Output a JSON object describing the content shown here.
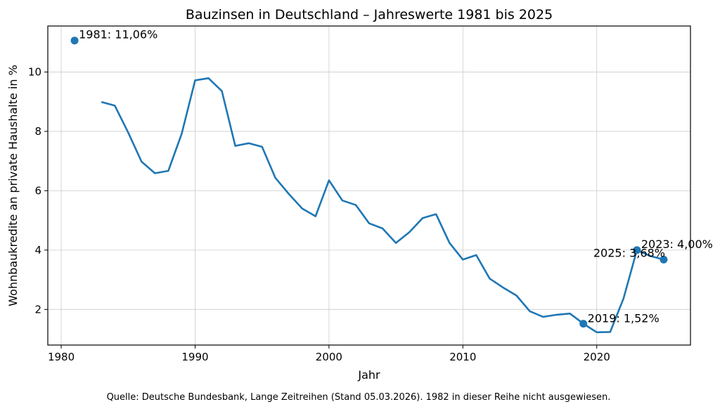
{
  "chart_data": {
    "type": "line",
    "title": "Bauzinsen in Deutschland – Jahreswerte 1981 bis 2025",
    "xlabel": "Jahr",
    "ylabel": "Wohnbaukredite an private Haushalte in %",
    "xlim": [
      1979,
      2027
    ],
    "ylim": [
      0.8,
      11.55
    ],
    "xticks": [
      1980,
      1990,
      2000,
      2010,
      2020
    ],
    "yticks": [
      2,
      4,
      6,
      8,
      10
    ],
    "grid": true,
    "color": "#1f77b4",
    "source": "Quelle: Deutsche Bundesbank, Lange Zeitreihen (Stand 05.03.2026). 1982 in dieser Reihe nicht ausgewiesen.",
    "series": [
      {
        "x": [
          1981,
          1983,
          1984,
          1985,
          1986,
          1987,
          1988,
          1989,
          1990,
          1991,
          1992,
          1993,
          1994,
          1995,
          1996,
          1997,
          1998,
          1999,
          2000,
          2001,
          2002,
          2003,
          2004,
          2005,
          2006,
          2007,
          2008,
          2009,
          2010,
          2011,
          2012,
          2013,
          2014,
          2015,
          2016,
          2017,
          2018,
          2019,
          2020,
          2021,
          2022,
          2023,
          2024,
          2025
        ],
        "y": [
          11.06,
          8.99,
          8.87,
          7.96,
          6.98,
          6.59,
          6.67,
          7.92,
          9.72,
          9.79,
          9.36,
          7.51,
          7.6,
          7.48,
          6.43,
          5.89,
          5.4,
          5.14,
          6.35,
          5.67,
          5.52,
          4.9,
          4.73,
          4.24,
          4.6,
          5.08,
          5.21,
          4.24,
          3.68,
          3.83,
          3.04,
          2.74,
          2.47,
          1.94,
          1.75,
          1.82,
          1.86,
          1.52,
          1.23,
          1.24,
          2.37,
          4.0,
          3.8,
          3.68
        ]
      }
    ],
    "highlighted_points": [
      {
        "x": 1981,
        "y": 11.06,
        "label": "1981: 11,06%"
      },
      {
        "x": 2019,
        "y": 1.52,
        "label": "2019: 1,52%"
      },
      {
        "x": 2023,
        "y": 4.0,
        "label": "2023: 4,00%"
      },
      {
        "x": 2025,
        "y": 3.68,
        "label": "2025: 3,68%"
      }
    ]
  }
}
